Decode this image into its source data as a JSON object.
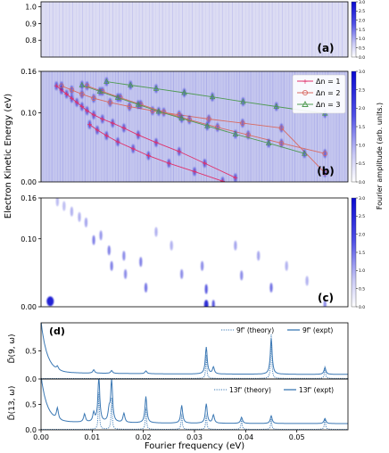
{
  "figure_labels": {
    "shared_ylabel": "Electron Kinetic Energy (eV)",
    "colorbar_label": "Fourier amplitude (arb. units.)",
    "xlabel": "Fourier frequency (eV)"
  },
  "colors": {
    "map_blue": "#1414d2",
    "dn1": "#e0306a",
    "dn2": "#d86b63",
    "dn3": "#4f9a52",
    "spectrum": "#3b78b4",
    "axis": "#000000"
  },
  "chart_data": [
    {
      "id": "a",
      "panel_label": "(a)",
      "type": "heatmap",
      "ylim": [
        0.7,
        1.03
      ],
      "yticks": [
        "1.0",
        "0.9",
        "0.8"
      ],
      "xlim": [
        0,
        0.06
      ],
      "colorbar": {
        "range": [
          0,
          3.0
        ],
        "ticks": [
          "0.0",
          "0.5",
          "1.0",
          "1.5",
          "2.0",
          "2.5",
          "3.0"
        ]
      },
      "streaks": [
        {
          "x": 0.0043,
          "y0": 0.87,
          "y1": 1.02,
          "a": 0.5
        },
        {
          "x": 0.0075,
          "y0": 0.82,
          "y1": 1.02,
          "a": 0.6
        },
        {
          "x": 0.0105,
          "y0": 0.84,
          "y1": 1.02,
          "a": 0.85
        },
        {
          "x": 0.0138,
          "y0": 0.82,
          "y1": 1.02,
          "a": 0.7
        },
        {
          "x": 0.0157,
          "y0": 0.9,
          "y1": 1.0,
          "a": 0.5
        },
        {
          "x": 0.018,
          "y0": 0.8,
          "y1": 1.0,
          "a": 0.6
        },
        {
          "x": 0.0205,
          "y0": 0.86,
          "y1": 1.0,
          "a": 0.6
        },
        {
          "x": 0.0245,
          "y0": 0.85,
          "y1": 0.99,
          "a": 0.55
        },
        {
          "x": 0.027,
          "y0": 0.82,
          "y1": 0.99,
          "a": 0.55
        },
        {
          "x": 0.032,
          "y0": 0.8,
          "y1": 0.98,
          "a": 0.45
        },
        {
          "x": 0.037,
          "y0": 0.86,
          "y1": 0.98,
          "a": 0.35
        },
        {
          "x": 0.045,
          "y0": 0.83,
          "y1": 0.96,
          "a": 0.3
        },
        {
          "x": 0.049,
          "y0": 0.86,
          "y1": 0.95,
          "a": 0.25
        }
      ]
    },
    {
      "id": "b",
      "panel_label": "(b)",
      "type": "heatmap",
      "ylim": [
        0,
        0.16
      ],
      "yticks": [
        "0.16",
        "0.10",
        "0.00"
      ],
      "xlim": [
        0,
        0.06
      ],
      "colorbar": {
        "range": [
          0,
          3.0
        ],
        "ticks": [
          "0.0",
          "0.5",
          "1.0",
          "1.5",
          "2.0",
          "2.5",
          "3.0"
        ]
      },
      "legend": [
        {
          "label": "Δn = 1",
          "key": "dn1"
        },
        {
          "label": "Δn = 2",
          "key": "dn2"
        },
        {
          "label": "Δn = 3",
          "key": "dn3"
        }
      ],
      "legend_position": "top-right",
      "horizontal_bands": [
        0.013,
        0.045,
        0.068,
        0.085,
        0.097,
        0.108
      ],
      "series": [
        {
          "key": "dn1",
          "marker": "+",
          "x": [
            0.003,
            0.004,
            0.005,
            0.006,
            0.007,
            0.008,
            0.009,
            0.0103,
            0.012,
            0.014,
            0.0162,
            0.019,
            0.0225,
            0.027,
            0.032,
            0.038
          ],
          "y": [
            0.139,
            0.133,
            0.127,
            0.121,
            0.115,
            0.109,
            0.103,
            0.097,
            0.091,
            0.085,
            0.078,
            0.068,
            0.057,
            0.044,
            0.027,
            0.006
          ]
        },
        {
          "key": "dn1",
          "marker": "+",
          "x": [
            0.0095,
            0.011,
            0.0128,
            0.015,
            0.018,
            0.021,
            0.025,
            0.03,
            0.0355
          ],
          "y": [
            0.083,
            0.075,
            0.067,
            0.058,
            0.048,
            0.038,
            0.027,
            0.015,
            0.001
          ]
        },
        {
          "key": "dn2",
          "marker": "o",
          "x": [
            0.004,
            0.006,
            0.008,
            0.0103,
            0.0135,
            0.0173,
            0.0218,
            0.027,
            0.0328,
            0.0394,
            0.047,
            0.0555
          ],
          "y": [
            0.139,
            0.133,
            0.127,
            0.121,
            0.115,
            0.109,
            0.103,
            0.097,
            0.091,
            0.085,
            0.078,
            0.013
          ]
        },
        {
          "key": "dn2",
          "marker": "o",
          "x": [
            0.009,
            0.012,
            0.0155,
            0.0195,
            0.024,
            0.029,
            0.0345,
            0.0405,
            0.047,
            0.0555
          ],
          "y": [
            0.139,
            0.131,
            0.122,
            0.112,
            0.101,
            0.09,
            0.079,
            0.068,
            0.056,
            0.041
          ]
        },
        {
          "key": "dn3",
          "marker": "^",
          "x": [
            0.008,
            0.0115,
            0.015,
            0.019,
            0.023,
            0.0275,
            0.0325,
            0.038,
            0.0445,
            0.0515
          ],
          "y": [
            0.14,
            0.131,
            0.122,
            0.112,
            0.102,
            0.092,
            0.081,
            0.069,
            0.056,
            0.041
          ]
        },
        {
          "key": "dn3",
          "marker": "^",
          "x": [
            0.0128,
            0.0175,
            0.0225,
            0.028,
            0.0335,
            0.0395,
            0.046,
            0.0555
          ],
          "y": [
            0.145,
            0.14,
            0.135,
            0.129,
            0.123,
            0.116,
            0.109,
            0.099
          ]
        }
      ]
    },
    {
      "id": "c",
      "panel_label": "(c)",
      "type": "heatmap",
      "ylim": [
        0,
        0.16
      ],
      "yticks": [
        "0.16",
        "0.10",
        "0.00"
      ],
      "xlim": [
        0,
        0.06
      ],
      "colorbar": {
        "range": [
          0,
          3.0
        ],
        "ticks": [
          "0.0",
          "0.5",
          "1.0",
          "1.5",
          "2.0",
          "2.5",
          "3.0"
        ]
      },
      "blobs": [
        {
          "x": 0.0018,
          "y": 0.008,
          "a": 0.95,
          "w": 2.5
        },
        {
          "x": 0.0032,
          "y": 0.155,
          "a": 0.3,
          "w": 1
        },
        {
          "x": 0.0045,
          "y": 0.148,
          "a": 0.3,
          "w": 1
        },
        {
          "x": 0.006,
          "y": 0.14,
          "a": 0.35,
          "w": 1
        },
        {
          "x": 0.0075,
          "y": 0.132,
          "a": 0.35,
          "w": 1
        },
        {
          "x": 0.0088,
          "y": 0.124,
          "a": 0.4,
          "w": 1
        },
        {
          "x": 0.0103,
          "y": 0.098,
          "a": 0.55,
          "w": 1
        },
        {
          "x": 0.0117,
          "y": 0.105,
          "a": 0.45,
          "w": 1
        },
        {
          "x": 0.0133,
          "y": 0.083,
          "a": 0.55,
          "w": 1
        },
        {
          "x": 0.0138,
          "y": 0.06,
          "a": 0.55,
          "w": 1
        },
        {
          "x": 0.0162,
          "y": 0.075,
          "a": 0.5,
          "w": 1
        },
        {
          "x": 0.0165,
          "y": 0.048,
          "a": 0.5,
          "w": 1
        },
        {
          "x": 0.0195,
          "y": 0.066,
          "a": 0.55,
          "w": 1
        },
        {
          "x": 0.0205,
          "y": 0.028,
          "a": 0.6,
          "w": 1
        },
        {
          "x": 0.0225,
          "y": 0.11,
          "a": 0.35,
          "w": 1
        },
        {
          "x": 0.0255,
          "y": 0.09,
          "a": 0.35,
          "w": 1
        },
        {
          "x": 0.0275,
          "y": 0.048,
          "a": 0.5,
          "w": 1
        },
        {
          "x": 0.0315,
          "y": 0.06,
          "a": 0.5,
          "w": 1
        },
        {
          "x": 0.0323,
          "y": 0.026,
          "a": 0.7,
          "w": 1
        },
        {
          "x": 0.0323,
          "y": 0.003,
          "a": 0.9,
          "w": 1.5
        },
        {
          "x": 0.0337,
          "y": 0.003,
          "a": 0.7,
          "w": 1
        },
        {
          "x": 0.038,
          "y": 0.09,
          "a": 0.4,
          "w": 1
        },
        {
          "x": 0.0392,
          "y": 0.046,
          "a": 0.5,
          "w": 1
        },
        {
          "x": 0.0425,
          "y": 0.075,
          "a": 0.4,
          "w": 1
        },
        {
          "x": 0.045,
          "y": 0.028,
          "a": 0.6,
          "w": 1
        },
        {
          "x": 0.048,
          "y": 0.06,
          "a": 0.35,
          "w": 1
        },
        {
          "x": 0.052,
          "y": 0.038,
          "a": 0.35,
          "w": 1
        },
        {
          "x": 0.0555,
          "y": 0.003,
          "a": 0.5,
          "w": 1
        }
      ]
    },
    {
      "id": "d",
      "panel_label": "(d)",
      "type": "line",
      "xlim": [
        0,
        0.06
      ],
      "xticks": [
        "0.00",
        "0.01",
        "0.02",
        "0.03",
        "0.04",
        "0.05"
      ],
      "subplots": [
        {
          "ylabel": "D̃(9, ω)",
          "ylim": [
            0,
            1.0
          ],
          "yticks": [
            "0.5",
            "0.0"
          ],
          "legend": [
            {
              "label": "9f' (theory)",
              "style": "dotted"
            },
            {
              "label": "9f' (expt)",
              "style": "solid"
            }
          ],
          "peaks_expt": [
            {
              "x": 0.0032,
              "y": 0.06
            },
            {
              "x": 0.0103,
              "y": 0.06
            },
            {
              "x": 0.0138,
              "y": 0.05
            },
            {
              "x": 0.0205,
              "y": 0.05
            },
            {
              "x": 0.0323,
              "y": 0.48
            },
            {
              "x": 0.0337,
              "y": 0.12
            },
            {
              "x": 0.045,
              "y": 0.64
            },
            {
              "x": 0.0555,
              "y": 0.12
            }
          ],
          "peaks_theory": [
            {
              "x": 0.0323,
              "y": 0.42
            },
            {
              "x": 0.045,
              "y": 0.78
            },
            {
              "x": 0.0555,
              "y": 0.22
            }
          ],
          "baseline": 0.08
        },
        {
          "ylabel": "D̃(13, ω)",
          "ylim": [
            0,
            1.0
          ],
          "yticks": [
            "0.5",
            "0.0"
          ],
          "legend": [
            {
              "label": "13f' (theory)",
              "style": "dotted"
            },
            {
              "label": "13f' (expt)",
              "style": "solid"
            }
          ],
          "peaks_expt": [
            {
              "x": 0.0032,
              "y": 0.22
            },
            {
              "x": 0.0085,
              "y": 0.16
            },
            {
              "x": 0.0103,
              "y": 0.18
            },
            {
              "x": 0.0113,
              "y": 0.88
            },
            {
              "x": 0.0133,
              "y": 0.22
            },
            {
              "x": 0.0138,
              "y": 0.82
            },
            {
              "x": 0.0162,
              "y": 0.18
            },
            {
              "x": 0.0205,
              "y": 0.52
            },
            {
              "x": 0.0275,
              "y": 0.35
            },
            {
              "x": 0.0323,
              "y": 0.38
            },
            {
              "x": 0.0337,
              "y": 0.16
            },
            {
              "x": 0.0392,
              "y": 0.12
            },
            {
              "x": 0.045,
              "y": 0.15
            },
            {
              "x": 0.0555,
              "y": 0.1
            }
          ],
          "peaks_theory": [
            {
              "x": 0.0113,
              "y": 0.72
            },
            {
              "x": 0.0138,
              "y": 0.62
            },
            {
              "x": 0.0205,
              "y": 0.42
            },
            {
              "x": 0.0275,
              "y": 0.3
            },
            {
              "x": 0.0323,
              "y": 0.3
            },
            {
              "x": 0.0392,
              "y": 0.2
            },
            {
              "x": 0.045,
              "y": 0.2
            },
            {
              "x": 0.0555,
              "y": 0.22
            }
          ],
          "baseline": 0.12
        }
      ]
    }
  ]
}
